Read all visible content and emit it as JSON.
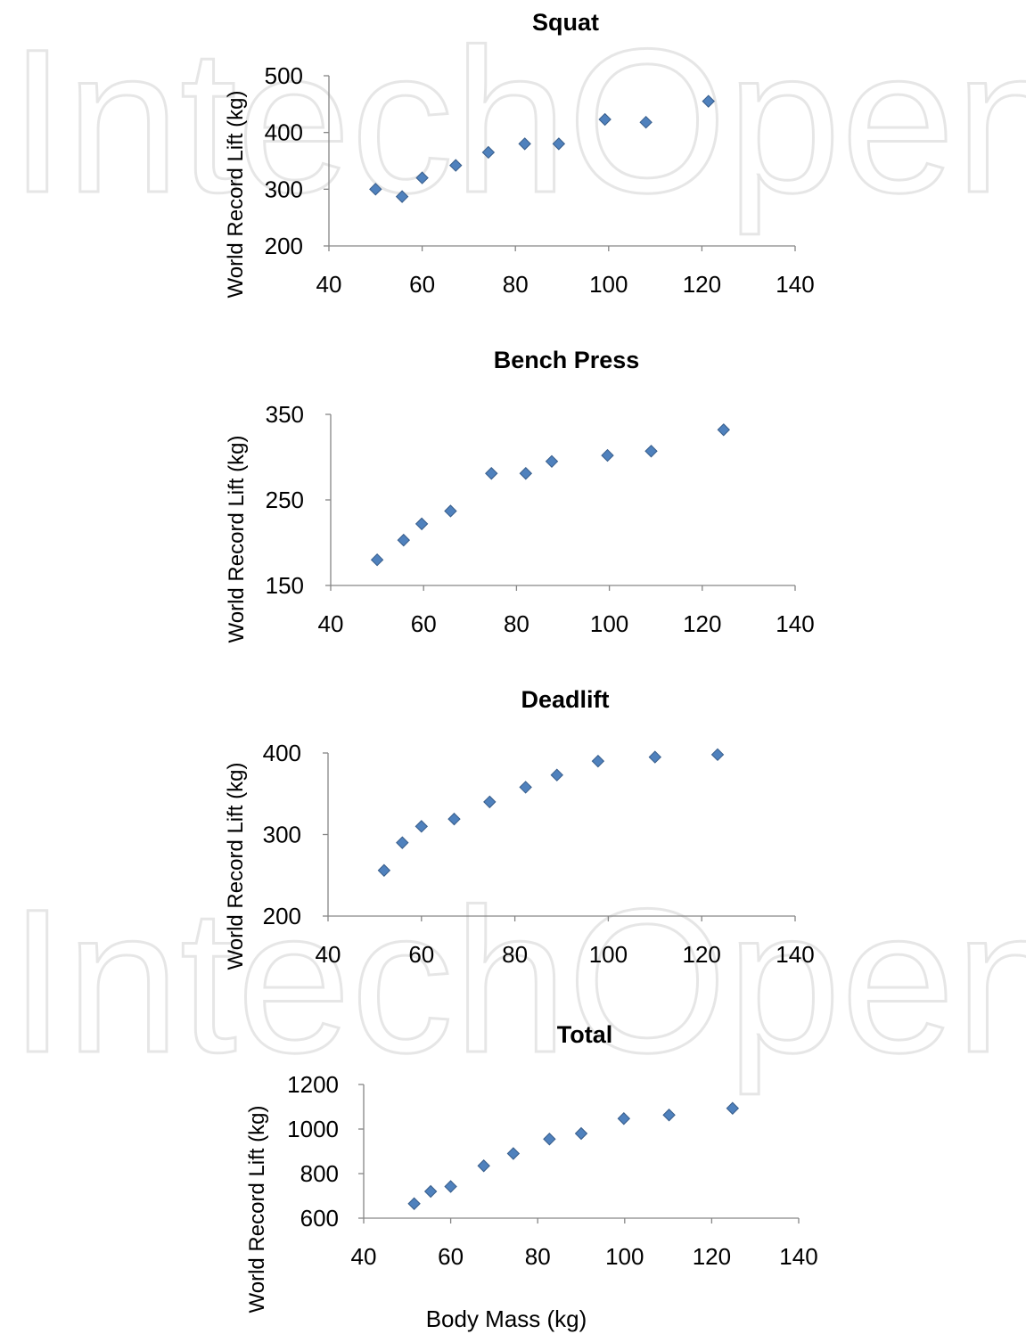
{
  "chart_data": [
    {
      "type": "scatter",
      "title": "Squat",
      "ylabel": "World Record Lift (kg)",
      "xlabel": "",
      "xlim": [
        40,
        140
      ],
      "ylim": [
        200,
        500
      ],
      "xticks": [
        40,
        60,
        80,
        100,
        120,
        140
      ],
      "yticks": [
        200,
        300,
        400,
        500
      ],
      "grid": false,
      "series": [
        {
          "points": [
            [
              50,
              300
            ],
            [
              55.7,
              287
            ],
            [
              60,
              320
            ],
            [
              67.2,
              342
            ],
            [
              74.2,
              365
            ],
            [
              82,
              380
            ],
            [
              89.3,
              380
            ],
            [
              99.2,
              423
            ],
            [
              108,
              418
            ],
            [
              121.4,
              455
            ]
          ]
        }
      ]
    },
    {
      "type": "scatter",
      "title": "Bench Press",
      "ylabel": "World Record Lift (kg)",
      "xlabel": "",
      "xlim": [
        40,
        140
      ],
      "ylim": [
        150,
        350
      ],
      "xticks": [
        40,
        60,
        80,
        100,
        120,
        140
      ],
      "yticks": [
        150,
        250,
        350
      ],
      "grid": false,
      "series": [
        {
          "points": [
            [
              50,
              180
            ],
            [
              55.7,
              203
            ],
            [
              59.6,
              222
            ],
            [
              65.8,
              237
            ],
            [
              74.6,
              281
            ],
            [
              82,
              281
            ],
            [
              87.6,
              295
            ],
            [
              99.6,
              302
            ],
            [
              109,
              307
            ],
            [
              124.6,
              332
            ]
          ]
        }
      ]
    },
    {
      "type": "scatter",
      "title": "Deadlift",
      "ylabel": "World Record Lift (kg)",
      "xlabel": "",
      "xlim": [
        40,
        140
      ],
      "ylim": [
        200,
        400
      ],
      "xticks": [
        40,
        60,
        80,
        100,
        120,
        140
      ],
      "yticks": [
        200,
        300,
        400
      ],
      "grid": false,
      "series": [
        {
          "points": [
            [
              52,
              256
            ],
            [
              55.9,
              290
            ],
            [
              60,
              310
            ],
            [
              67,
              319
            ],
            [
              74.6,
              340
            ],
            [
              82.3,
              358
            ],
            [
              89,
              373
            ],
            [
              97.8,
              390
            ],
            [
              110,
              395
            ],
            [
              123.4,
              398
            ]
          ]
        }
      ]
    },
    {
      "type": "scatter",
      "title": "Total",
      "ylabel": "World Record Lift (kg)",
      "xlabel": "Body Mass (kg)",
      "xlim": [
        40,
        140
      ],
      "ylim": [
        600,
        1200
      ],
      "xticks": [
        40,
        60,
        80,
        100,
        120,
        140
      ],
      "yticks": [
        600,
        800,
        1000,
        1200
      ],
      "grid": false,
      "series": [
        {
          "points": [
            [
              51.6,
              665
            ],
            [
              55.4,
              720
            ],
            [
              60,
              742
            ],
            [
              67.6,
              835
            ],
            [
              74.4,
              890
            ],
            [
              82.7,
              955
            ],
            [
              90,
              980
            ],
            [
              99.8,
              1047
            ],
            [
              110.2,
              1063
            ],
            [
              124.8,
              1093
            ]
          ]
        }
      ]
    }
  ]
}
